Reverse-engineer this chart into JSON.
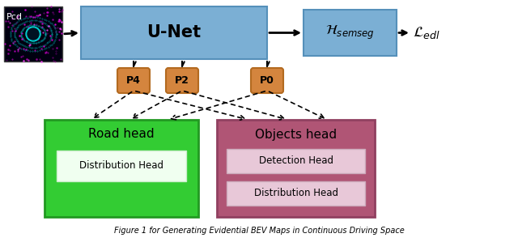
{
  "fig_width": 6.4,
  "fig_height": 2.99,
  "dpi": 100,
  "bg_color": "#ffffff",
  "pcd_label": "Pcd",
  "unet_label": "U-Net",
  "unet_color": "#7bafd4",
  "unet_border": "#5590ba",
  "semseg_box_color": "#7bafd4",
  "semseg_box_border": "#5590ba",
  "semseg_label": "$\\mathcal{H}_{semseg}$",
  "loss_label": "$\\mathcal{L}_{edl}$",
  "p_nodes": [
    "P4",
    "P2",
    "P0"
  ],
  "p_color": "#d4853e",
  "p_border": "#b36a20",
  "road_head_label": "Road head",
  "road_head_color": "#33cc33",
  "road_head_border": "#229922",
  "dist_head_label": "Distribution Head",
  "dist_head_color": "#f0fff0",
  "objects_head_label": "Objects head",
  "objects_head_color": "#b05575",
  "objects_head_border": "#904060",
  "det_head_label": "Detection Head",
  "det_head_color": "#e8c8d8",
  "dist_head2_label": "Distribution Head",
  "dist_head2_color": "#e8c8d8",
  "caption": "Figure 1 for Generating Evidential BEV Maps in Continuous Driving Space"
}
